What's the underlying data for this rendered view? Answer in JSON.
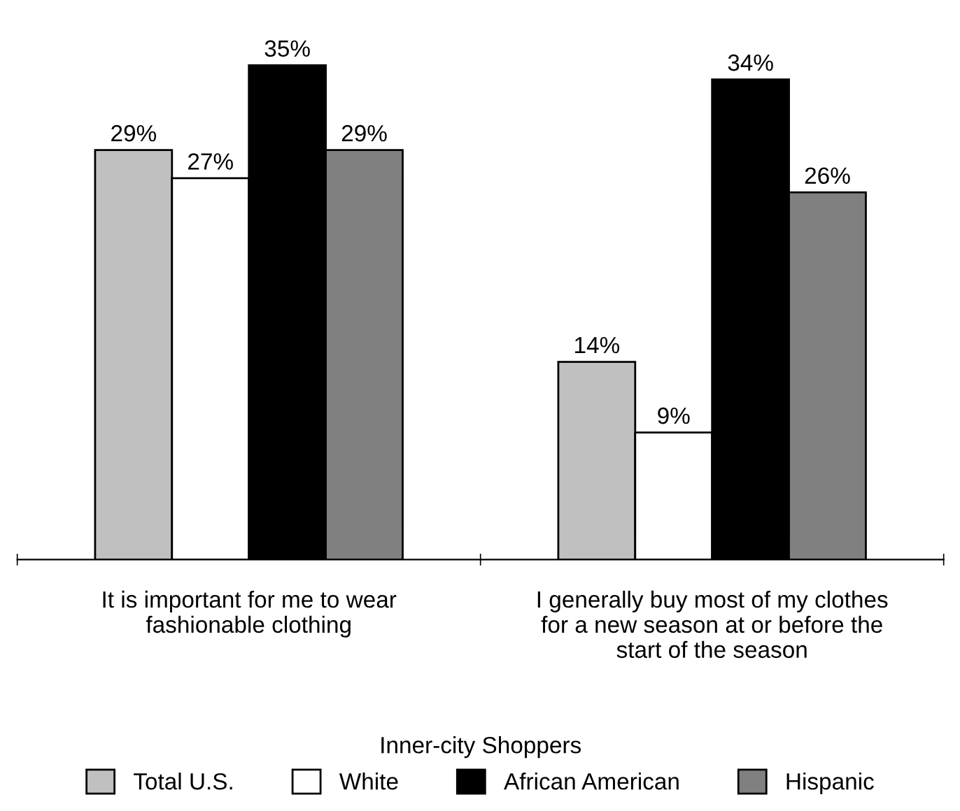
{
  "chart_data": {
    "type": "bar",
    "categories": [
      "It is important for me to wear\nfashionable clothing",
      "I generally buy most of my clothes\nfor a new season at or before the\nstart of the season"
    ],
    "series": [
      {
        "name": "Total U.S.",
        "color": "#c0c0c0",
        "values": [
          29,
          14
        ],
        "value_labels": [
          "29%",
          "14%"
        ]
      },
      {
        "name": "White",
        "color": "#ffffff",
        "values": [
          27,
          9
        ],
        "value_labels": [
          "27%",
          "9%"
        ]
      },
      {
        "name": "African American",
        "color": "#000000",
        "values": [
          35,
          34
        ],
        "value_labels": [
          "35%",
          "34%"
        ]
      },
      {
        "name": "Hispanic",
        "color": "#808080",
        "values": [
          29,
          26
        ],
        "value_labels": [
          "29%",
          "26%"
        ]
      }
    ],
    "tick_labels": "x",
    "legend": "bottom",
    "legend_title": "Inner-city Shoppers",
    "grid": false
  }
}
